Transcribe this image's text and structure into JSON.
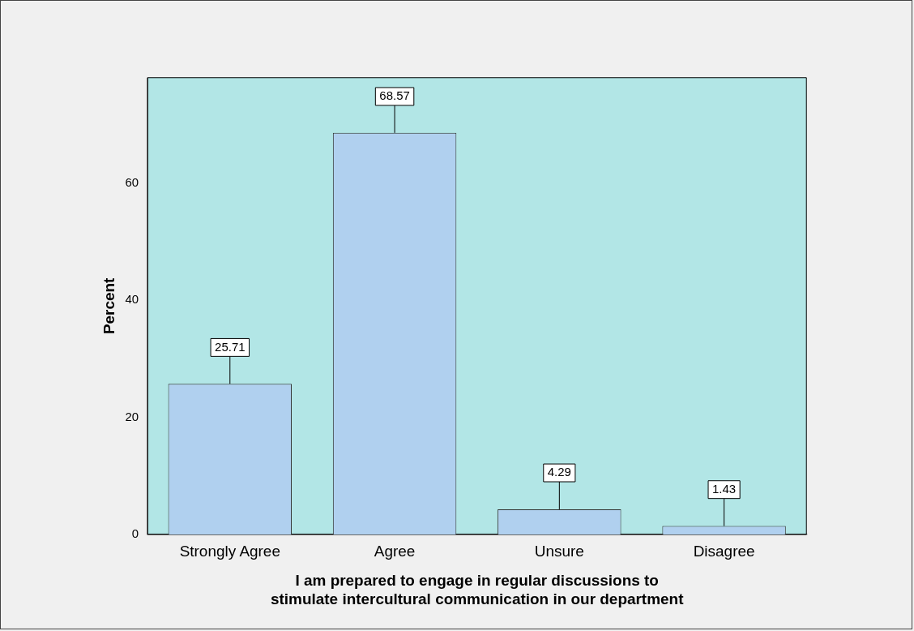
{
  "chart_data": {
    "type": "bar",
    "categories": [
      "Strongly Agree",
      "Agree",
      "Unsure",
      "Disagree"
    ],
    "values": [
      25.71,
      68.57,
      4.29,
      1.43
    ],
    "color": "#b0d0ef",
    "ylabel": "Percent",
    "xlabel": "I am prepared to engage in regular discussions to stimulate intercultural communication in our department",
    "ylim": [
      0,
      78
    ],
    "yticks": [
      0,
      20,
      40,
      60
    ],
    "grid": false,
    "legend": false,
    "data_labels": true
  }
}
